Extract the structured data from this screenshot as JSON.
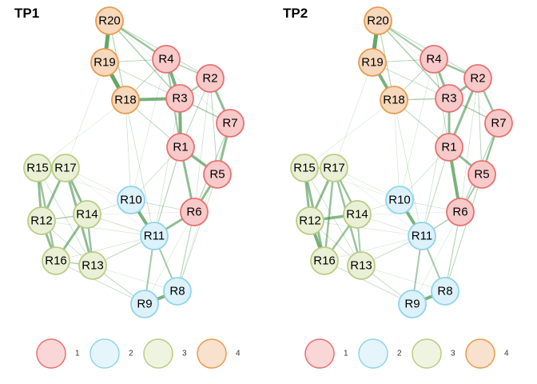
{
  "colors": {
    "groups": {
      "1": {
        "fill": "#F8C9C9",
        "stroke": "#E87070"
      },
      "2": {
        "fill": "#DCF1F9",
        "stroke": "#8FD4EC"
      },
      "3": {
        "fill": "#EAF0D6",
        "stroke": "#B9CC83"
      },
      "4": {
        "fill": "#F6D8BC",
        "stroke": "#E89B4C"
      }
    },
    "edge": "#3E8E41",
    "legend_alpha": 0.75
  },
  "nodes": [
    {
      "id": "R1",
      "group": "1"
    },
    {
      "id": "R2",
      "group": "1"
    },
    {
      "id": "R3",
      "group": "1"
    },
    {
      "id": "R4",
      "group": "1"
    },
    {
      "id": "R5",
      "group": "1"
    },
    {
      "id": "R6",
      "group": "1"
    },
    {
      "id": "R7",
      "group": "1"
    },
    {
      "id": "R8",
      "group": "2"
    },
    {
      "id": "R9",
      "group": "2"
    },
    {
      "id": "R10",
      "group": "2"
    },
    {
      "id": "R11",
      "group": "2"
    },
    {
      "id": "R12",
      "group": "3"
    },
    {
      "id": "R13",
      "group": "3"
    },
    {
      "id": "R14",
      "group": "3"
    },
    {
      "id": "R15",
      "group": "3"
    },
    {
      "id": "R16",
      "group": "3"
    },
    {
      "id": "R17",
      "group": "3"
    },
    {
      "id": "R18",
      "group": "4"
    },
    {
      "id": "R19",
      "group": "4"
    },
    {
      "id": "R20",
      "group": "4"
    }
  ],
  "panels": [
    {
      "title": "TP1",
      "edges": [
        [
          "R20",
          "R19",
          5
        ],
        [
          "R19",
          "R18",
          5
        ],
        [
          "R18",
          "R3",
          4
        ],
        [
          "R20",
          "R4",
          2.5
        ],
        [
          "R4",
          "R3",
          4
        ],
        [
          "R4",
          "R2",
          1.5
        ],
        [
          "R3",
          "R2",
          2
        ],
        [
          "R2",
          "R7",
          3
        ],
        [
          "R3",
          "R7",
          1.5
        ],
        [
          "R3",
          "R1",
          4
        ],
        [
          "R1",
          "R5",
          3.5
        ],
        [
          "R7",
          "R5",
          3
        ],
        [
          "R1",
          "R6",
          3
        ],
        [
          "R5",
          "R6",
          3
        ],
        [
          "R4",
          "R1",
          2
        ],
        [
          "R6",
          "R11",
          3
        ],
        [
          "R11",
          "R10",
          4
        ],
        [
          "R11",
          "R8",
          2
        ],
        [
          "R8",
          "R9",
          4
        ],
        [
          "R11",
          "R9",
          2
        ],
        [
          "R15",
          "R17",
          1.5
        ],
        [
          "R15",
          "R12",
          3
        ],
        [
          "R17",
          "R12",
          3
        ],
        [
          "R17",
          "R14",
          3
        ],
        [
          "R12",
          "R16",
          3
        ],
        [
          "R14",
          "R16",
          3
        ],
        [
          "R15",
          "R16",
          2.5
        ],
        [
          "R14",
          "R13",
          2.5
        ],
        [
          "R17",
          "R13",
          3
        ],
        [
          "R12",
          "R14",
          1.5
        ],
        [
          "R16",
          "R13",
          1.5
        ],
        [
          "R18",
          "R1",
          1
        ],
        [
          "R20",
          "R3",
          1.5
        ],
        [
          "R19",
          "R4",
          1
        ],
        [
          "R20",
          "R2",
          1
        ],
        [
          "R18",
          "R11",
          0.7
        ],
        [
          "R10",
          "R14",
          0.7
        ],
        [
          "R13",
          "R9",
          1
        ],
        [
          "R16",
          "R9",
          0.8
        ],
        [
          "R13",
          "R11",
          1
        ],
        [
          "R6",
          "R8",
          1.2
        ],
        [
          "R5",
          "R8",
          0.8
        ],
        [
          "R1",
          "R11",
          1.2
        ],
        [
          "R2",
          "R5",
          1
        ],
        [
          "R7",
          "R6",
          1.2
        ],
        [
          "R18",
          "R15",
          0.5
        ],
        [
          "R19",
          "R17",
          0.5
        ],
        [
          "R10",
          "R6",
          0.8
        ],
        [
          "R14",
          "R11",
          0.7
        ],
        [
          "R12",
          "R11",
          0.5
        ],
        [
          "R17",
          "R10",
          0.5
        ],
        [
          "R15",
          "R10",
          0.4
        ],
        [
          "R18",
          "R10",
          0.6
        ],
        [
          "R3",
          "R11",
          0.6
        ],
        [
          "R4",
          "R10",
          0.5
        ],
        [
          "R7",
          "R8",
          0.5
        ],
        [
          "R2",
          "R6",
          0.6
        ],
        [
          "R16",
          "R11",
          0.6
        ],
        [
          "R13",
          "R8",
          0.5
        ],
        [
          "R20",
          "R18",
          1.2
        ],
        [
          "R4",
          "R18",
          1
        ],
        [
          "R1",
          "R10",
          0.6
        ],
        [
          "R9",
          "R6",
          0.5
        ],
        [
          "R15",
          "R13",
          0.7
        ],
        [
          "R12",
          "R13",
          0.8
        ],
        [
          "R19",
          "R3",
          0.8
        ],
        [
          "R2",
          "R1",
          1
        ],
        [
          "R14",
          "R6",
          0.4
        ],
        [
          "R17",
          "R11",
          0.4
        ],
        [
          "R20",
          "R7",
          0.5
        ]
      ]
    },
    {
      "title": "TP2",
      "edges": [
        [
          "R20",
          "R19",
          5
        ],
        [
          "R19",
          "R18",
          4
        ],
        [
          "R18",
          "R3",
          1.5
        ],
        [
          "R20",
          "R4",
          2
        ],
        [
          "R4",
          "R3",
          3
        ],
        [
          "R4",
          "R2",
          2.5
        ],
        [
          "R3",
          "R2",
          3
        ],
        [
          "R2",
          "R7",
          2.5
        ],
        [
          "R3",
          "R7",
          1.5
        ],
        [
          "R3",
          "R1",
          3
        ],
        [
          "R1",
          "R5",
          3
        ],
        [
          "R7",
          "R5",
          2.5
        ],
        [
          "R1",
          "R6",
          4
        ],
        [
          "R5",
          "R6",
          2
        ],
        [
          "R2",
          "R1",
          3
        ],
        [
          "R6",
          "R11",
          1.5
        ],
        [
          "R11",
          "R10",
          4
        ],
        [
          "R11",
          "R8",
          2
        ],
        [
          "R8",
          "R9",
          4
        ],
        [
          "R11",
          "R9",
          2
        ],
        [
          "R15",
          "R17",
          1.5
        ],
        [
          "R15",
          "R12",
          3
        ],
        [
          "R17",
          "R12",
          3
        ],
        [
          "R17",
          "R14",
          2.5
        ],
        [
          "R12",
          "R16",
          4
        ],
        [
          "R14",
          "R16",
          2.5
        ],
        [
          "R15",
          "R16",
          3
        ],
        [
          "R14",
          "R13",
          2
        ],
        [
          "R17",
          "R13",
          2.5
        ],
        [
          "R12",
          "R14",
          3.5
        ],
        [
          "R17",
          "R16",
          2.5
        ],
        [
          "R18",
          "R1",
          1
        ],
        [
          "R20",
          "R3",
          1.5
        ],
        [
          "R19",
          "R4",
          1
        ],
        [
          "R20",
          "R2",
          1
        ],
        [
          "R18",
          "R11",
          0.6
        ],
        [
          "R10",
          "R14",
          0.6
        ],
        [
          "R13",
          "R9",
          0.8
        ],
        [
          "R16",
          "R9",
          0.8
        ],
        [
          "R13",
          "R11",
          0.8
        ],
        [
          "R6",
          "R8",
          1.2
        ],
        [
          "R5",
          "R8",
          0.8
        ],
        [
          "R1",
          "R11",
          1
        ],
        [
          "R2",
          "R5",
          1
        ],
        [
          "R7",
          "R6",
          1.2
        ],
        [
          "R18",
          "R15",
          0.5
        ],
        [
          "R19",
          "R17",
          0.5
        ],
        [
          "R10",
          "R6",
          0.6
        ],
        [
          "R14",
          "R11",
          0.6
        ],
        [
          "R12",
          "R11",
          0.5
        ],
        [
          "R17",
          "R10",
          0.5
        ],
        [
          "R15",
          "R10",
          0.4
        ],
        [
          "R18",
          "R10",
          0.5
        ],
        [
          "R3",
          "R11",
          0.6
        ],
        [
          "R4",
          "R10",
          0.5
        ],
        [
          "R7",
          "R8",
          0.5
        ],
        [
          "R2",
          "R6",
          0.6
        ],
        [
          "R16",
          "R11",
          0.5
        ],
        [
          "R13",
          "R8",
          0.5
        ],
        [
          "R20",
          "R18",
          1.2
        ],
        [
          "R4",
          "R18",
          1
        ],
        [
          "R1",
          "R10",
          0.6
        ],
        [
          "R9",
          "R6",
          0.5
        ],
        [
          "R15",
          "R13",
          0.7
        ],
        [
          "R12",
          "R13",
          0.8
        ],
        [
          "R19",
          "R3",
          0.8
        ],
        [
          "R4",
          "R1",
          1
        ],
        [
          "R14",
          "R6",
          0.4
        ],
        [
          "R17",
          "R11",
          0.4
        ],
        [
          "R20",
          "R7",
          0.5
        ]
      ]
    }
  ],
  "legend": [
    {
      "label": "1",
      "group": "1"
    },
    {
      "label": "2",
      "group": "2"
    },
    {
      "label": "3",
      "group": "3"
    },
    {
      "label": "4",
      "group": "4"
    }
  ]
}
